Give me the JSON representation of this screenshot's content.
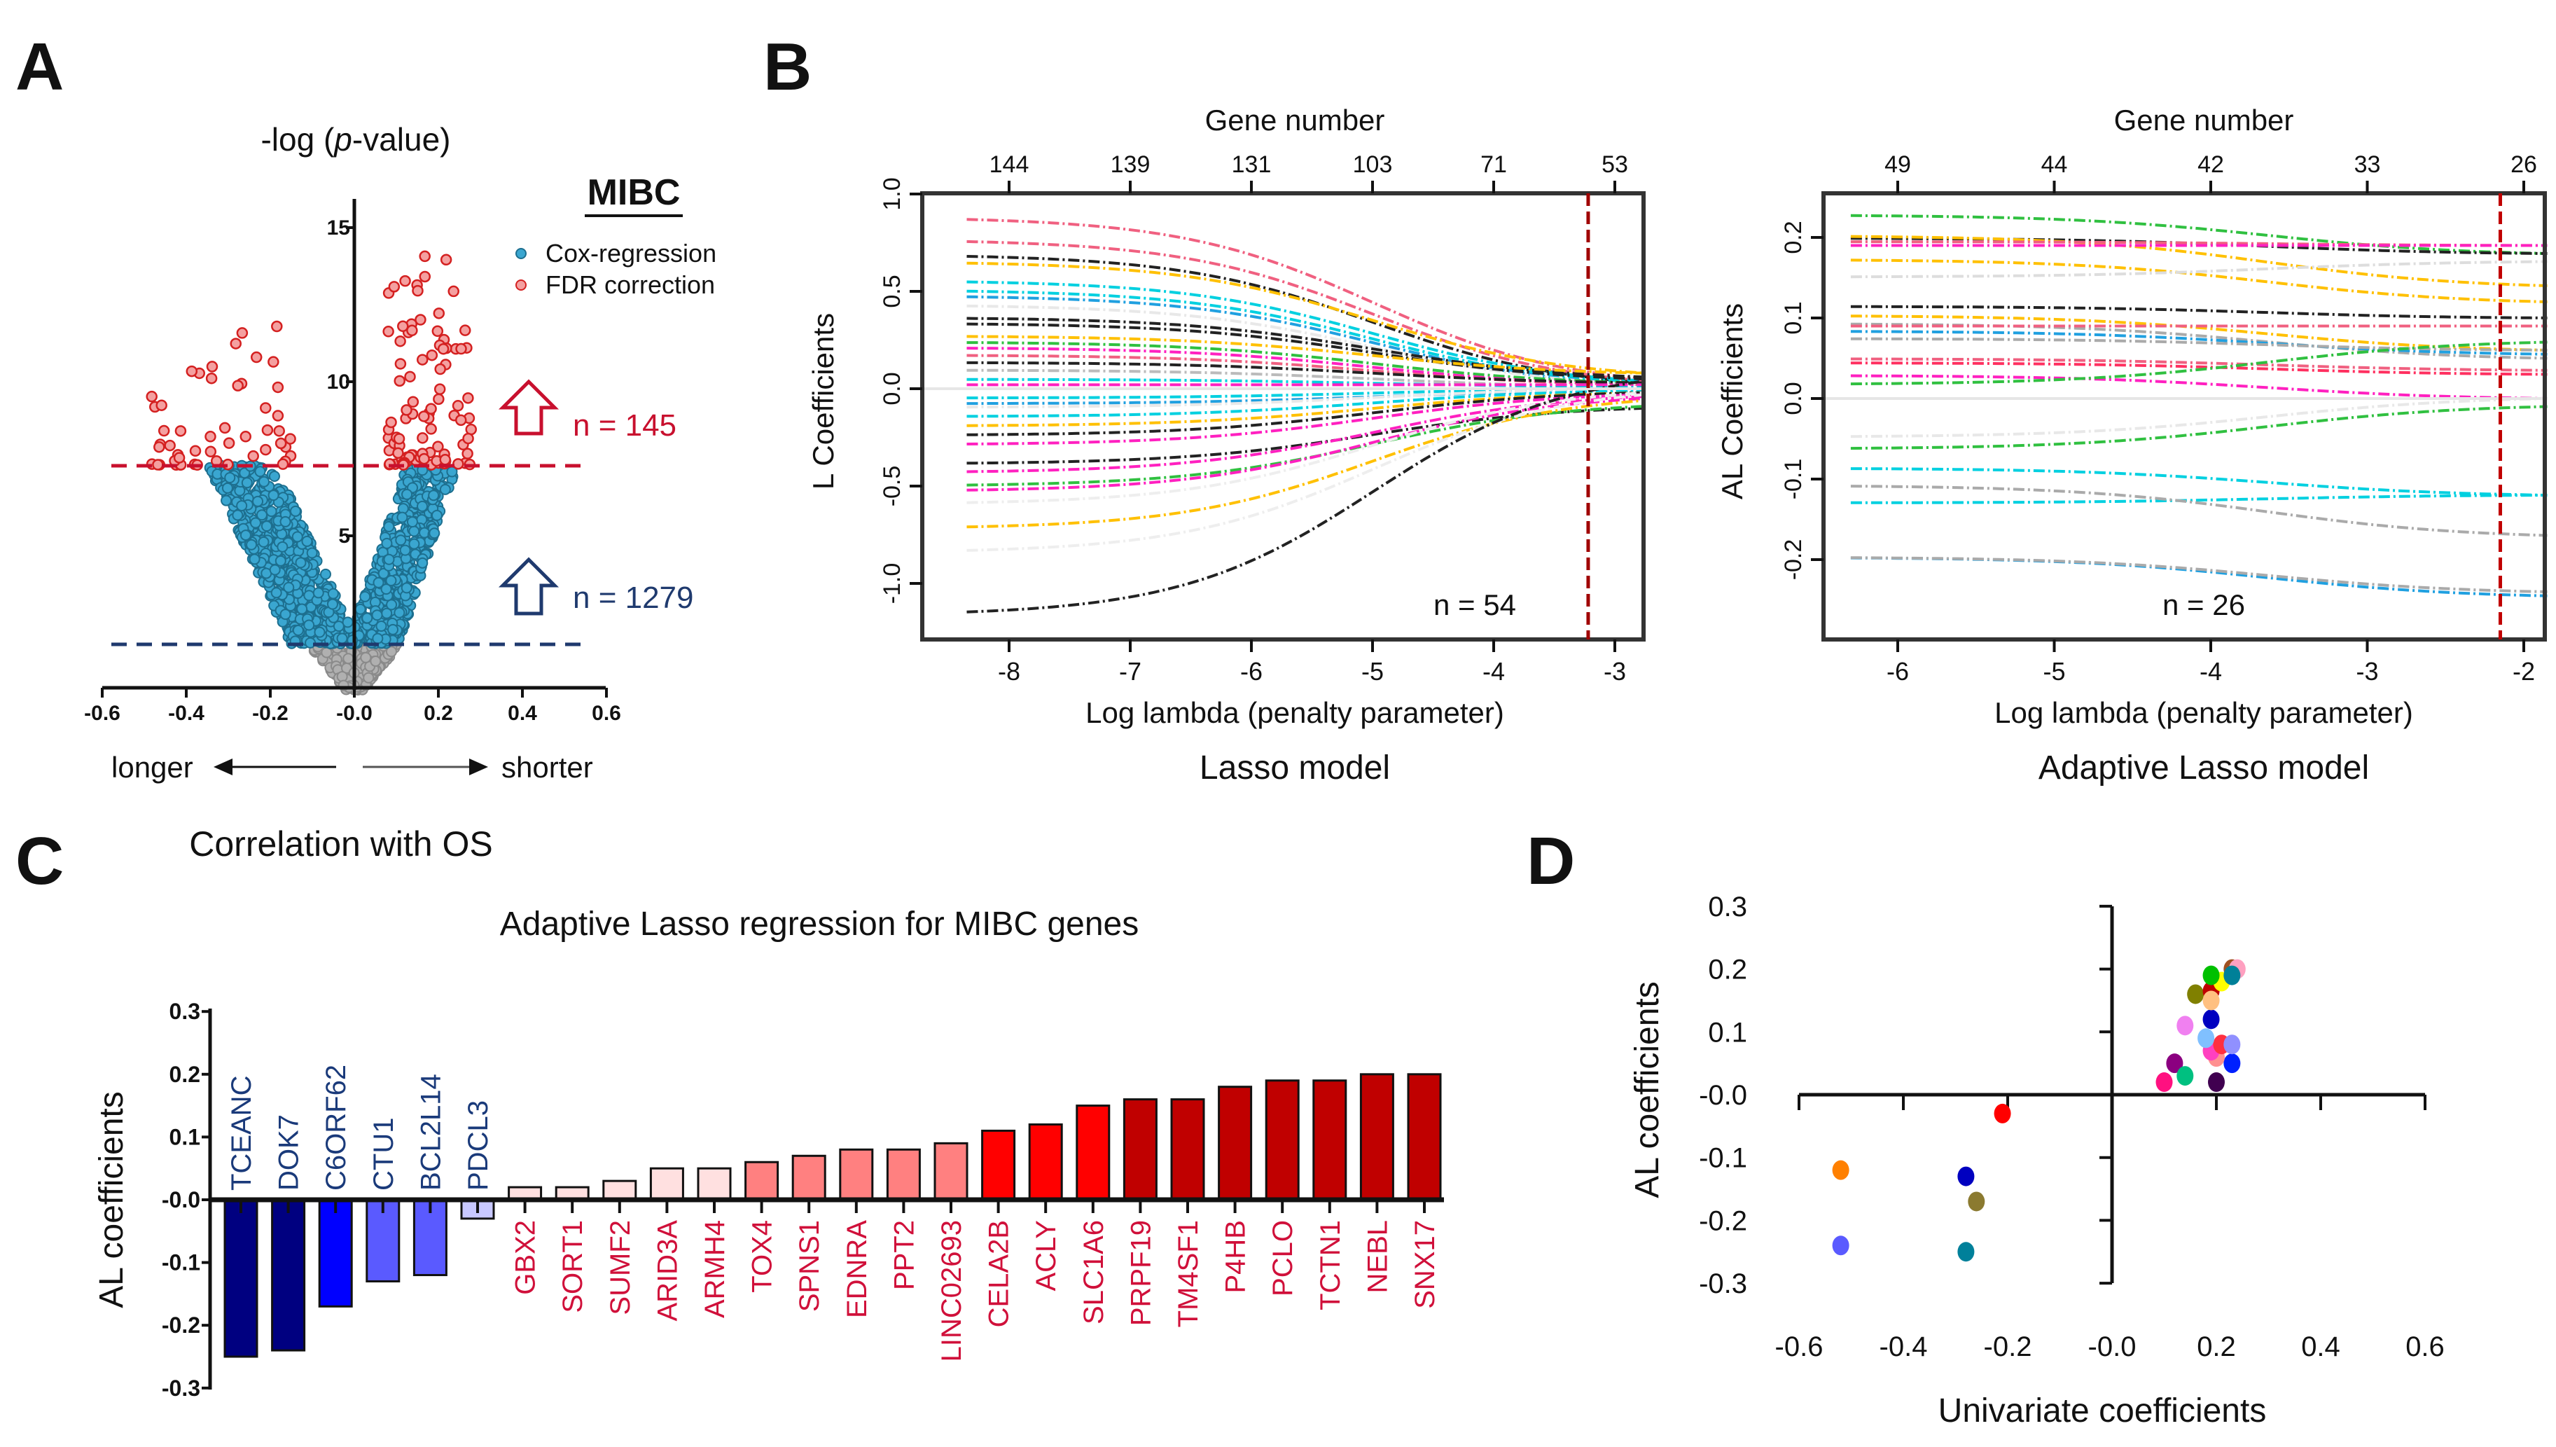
{
  "panels": {
    "A": "A",
    "B": "B",
    "C": "C",
    "D": "D"
  },
  "chart_data": [
    {
      "panel": "A",
      "type": "scatter",
      "ylabel_prefix": "-log (",
      "ylabel_italic": "p",
      "ylabel_suffix": "-value)",
      "xlabel": "Correlation with OS",
      "direction_left": "longer",
      "direction_right": "shorter",
      "group_label": "MIBC",
      "legend": [
        {
          "name": "Cox-regression",
          "color": "#3aa6d0"
        },
        {
          "name": "FDR correction",
          "color": "#e04848"
        }
      ],
      "xlim": [
        -0.6,
        0.6
      ],
      "ylim": [
        0,
        16
      ],
      "xticks": [
        "-0.6",
        "-0.4",
        "-0.2",
        "-0.0",
        "0.2",
        "0.4",
        "0.6"
      ],
      "xtick_values": [
        -0.6,
        -0.4,
        -0.2,
        0.0,
        0.2,
        0.4,
        0.6
      ],
      "yticks": [
        "5",
        "10",
        "15"
      ],
      "ytick_values": [
        5,
        10,
        15
      ],
      "fdr_threshold": 7.3,
      "cox_threshold": 1.5,
      "fdr_count_label": "n = 145",
      "cox_count_label": "n = 1279",
      "fdr_count": 145,
      "cox_count": 1279,
      "colors": {
        "fdr": "#c8102e",
        "cox": "#1f3a6e",
        "nonsig": "#8a8a8a"
      }
    },
    {
      "panel": "B-left",
      "type": "line",
      "top_axis_title": "Gene number",
      "top_ticks": [
        "144",
        "139",
        "131",
        "103",
        "71",
        "53"
      ],
      "top_tick_positions": [
        -8,
        -7,
        -6,
        -5,
        -4,
        -3
      ],
      "xlabel": "Log lambda (penalty parameter)",
      "ylabel": "L Coefficients",
      "subtitle": "Lasso model",
      "annotation": "n = 54",
      "xlim": [
        -8.35,
        -2.75
      ],
      "ylim": [
        -1.3,
        1.0
      ],
      "xticks": [
        "-8",
        "-7",
        "-6",
        "-5",
        "-4",
        "-3"
      ],
      "xtick_values": [
        -8,
        -7,
        -6,
        -5,
        -4,
        -3
      ],
      "yticks": [
        "1.0",
        "0.5",
        "0.0",
        "-0.5",
        "-1.0"
      ],
      "ytick_values": [
        1.0,
        0.5,
        0.0,
        -0.5,
        -1.0
      ],
      "selected_log_lambda": -3.22,
      "series": [
        {
          "start": 0.92,
          "end": 0.05,
          "color": "#f06080"
        },
        {
          "start": 0.8,
          "end": 0.04,
          "color": "#f06080"
        },
        {
          "start": 0.72,
          "end": 0.03,
          "color": "#222222"
        },
        {
          "start": 0.68,
          "end": 0.08,
          "color": "#ffc000"
        },
        {
          "start": 0.58,
          "end": 0.04,
          "color": "#00d0e0"
        },
        {
          "start": 0.53,
          "end": 0.03,
          "color": "#00d0e0"
        },
        {
          "start": 0.5,
          "end": 0.02,
          "color": "#20a0e0"
        },
        {
          "start": 0.45,
          "end": 0.02,
          "color": "#e8e8e8"
        },
        {
          "start": 0.38,
          "end": 0.06,
          "color": "#222222"
        },
        {
          "start": 0.35,
          "end": 0.05,
          "color": "#222222"
        },
        {
          "start": 0.28,
          "end": 0.08,
          "color": "#ffc000"
        },
        {
          "start": 0.25,
          "end": 0.03,
          "color": "#30c040"
        },
        {
          "start": 0.22,
          "end": 0.02,
          "color": "#ff20c0"
        },
        {
          "start": 0.18,
          "end": 0.02,
          "color": "#f06080"
        },
        {
          "start": 0.14,
          "end": 0.03,
          "color": "#222222"
        },
        {
          "start": 0.1,
          "end": 0.01,
          "color": "#bbbbbb"
        },
        {
          "start": 0.05,
          "end": 0.01,
          "color": "#00d0e0"
        },
        {
          "start": 0.02,
          "end": 0.02,
          "color": "#ff20c0"
        },
        {
          "start": -0.05,
          "end": 0.0,
          "color": "#00d0e0"
        },
        {
          "start": -0.08,
          "end": -0.01,
          "color": "#20a0e0"
        },
        {
          "start": -0.1,
          "end": 0.0,
          "color": "#e8e8e8"
        },
        {
          "start": -0.15,
          "end": -0.01,
          "color": "#00d0e0"
        },
        {
          "start": -0.2,
          "end": -0.02,
          "color": "#ffc000"
        },
        {
          "start": -0.25,
          "end": -0.02,
          "color": "#222222"
        },
        {
          "start": -0.3,
          "end": -0.03,
          "color": "#ff20c0"
        },
        {
          "start": -0.4,
          "end": -0.1,
          "color": "#222222"
        },
        {
          "start": -0.45,
          "end": -0.04,
          "color": "#ff20c0"
        },
        {
          "start": -0.52,
          "end": -0.09,
          "color": "#30c040"
        },
        {
          "start": -0.55,
          "end": -0.05,
          "color": "#ff20c0"
        },
        {
          "start": -0.62,
          "end": -0.02,
          "color": "#eeeeee"
        },
        {
          "start": -0.75,
          "end": -0.06,
          "color": "#ffc000"
        },
        {
          "start": -0.88,
          "end": -0.03,
          "color": "#eeeeee"
        },
        {
          "start": -1.22,
          "end": 0.04,
          "color": "#222222"
        }
      ],
      "colors": {
        "cutoff": "#a00000"
      }
    },
    {
      "panel": "B-right",
      "type": "line",
      "top_axis_title": "Gene number",
      "top_ticks": [
        "49",
        "44",
        "42",
        "33",
        "26"
      ],
      "top_tick_positions": [
        -6,
        -5,
        -4,
        -3,
        -2
      ],
      "xlabel": "Log lambda (penalty parameter)",
      "ylabel": "AL Coefficients",
      "subtitle": "Adaptive Lasso model",
      "annotation": "n = 26",
      "xlim": [
        -6.3,
        -1.85
      ],
      "ylim": [
        -0.26,
        0.25
      ],
      "xticks": [
        "-6",
        "-5",
        "-4",
        "-3",
        "-2"
      ],
      "xtick_values": [
        -6,
        -5,
        -4,
        -3,
        -2
      ],
      "yticks": [
        "0.2",
        "0.1",
        "0.0",
        "-0.1",
        "-0.2"
      ],
      "ytick_values": [
        0.2,
        0.1,
        0.0,
        -0.1,
        -0.2
      ],
      "selected_log_lambda": -2.15,
      "series": [
        {
          "start": 0.23,
          "end": 0.18,
          "color": "#30c040"
        },
        {
          "start": 0.2,
          "end": 0.18,
          "color": "#222222"
        },
        {
          "start": 0.205,
          "end": 0.14,
          "color": "#ffc000"
        },
        {
          "start": 0.195,
          "end": 0.19,
          "color": "#f06080"
        },
        {
          "start": 0.19,
          "end": 0.19,
          "color": "#ff20c0"
        },
        {
          "start": 0.175,
          "end": 0.12,
          "color": "#ffc000"
        },
        {
          "start": 0.15,
          "end": 0.17,
          "color": "#dddddd"
        },
        {
          "start": 0.115,
          "end": 0.1,
          "color": "#222222"
        },
        {
          "start": 0.105,
          "end": 0.06,
          "color": "#ffc000"
        },
        {
          "start": 0.095,
          "end": 0.05,
          "color": "#aaaaaa"
        },
        {
          "start": 0.09,
          "end": 0.09,
          "color": "#f06080"
        },
        {
          "start": 0.085,
          "end": 0.055,
          "color": "#20a0e0"
        },
        {
          "start": 0.075,
          "end": 0.06,
          "color": "#aaaaaa"
        },
        {
          "start": 0.05,
          "end": 0.035,
          "color": "#f06080"
        },
        {
          "start": 0.045,
          "end": 0.03,
          "color": "#ff3060"
        },
        {
          "start": 0.03,
          "end": 0.0,
          "color": "#ff20c0"
        },
        {
          "start": 0.015,
          "end": 0.07,
          "color": "#30c040"
        },
        {
          "start": -0.05,
          "end": 0.0,
          "color": "#e8e8e8"
        },
        {
          "start": -0.065,
          "end": -0.01,
          "color": "#30c040"
        },
        {
          "start": -0.085,
          "end": -0.12,
          "color": "#00d0e0"
        },
        {
          "start": -0.13,
          "end": -0.12,
          "color": "#00d0e0"
        },
        {
          "start": -0.105,
          "end": -0.17,
          "color": "#aaaaaa"
        },
        {
          "start": -0.195,
          "end": -0.245,
          "color": "#20a0e0"
        },
        {
          "start": -0.195,
          "end": -0.24,
          "color": "#aaaaaa"
        }
      ],
      "colors": {
        "cutoff": "#c00000"
      }
    },
    {
      "panel": "C",
      "type": "bar",
      "title": "Adaptive Lasso regression for MIBC genes",
      "ylabel": "AL coefficients",
      "ylim": [
        -0.3,
        0.3
      ],
      "yticks": [
        "0.3",
        "0.2",
        "0.1",
        "-0.0",
        "-0.1",
        "-0.2",
        "-0.3"
      ],
      "ytick_values": [
        0.3,
        0.2,
        0.1,
        0.0,
        -0.1,
        -0.2,
        -0.3
      ],
      "categories": [
        "TCEANC",
        "DOK7",
        "C6ORF62",
        "CTU1",
        "BCL2L14",
        "PDCL3",
        "GBX2",
        "SORT1",
        "SUMF2",
        "ARID3A",
        "ARMH4",
        "TOX4",
        "SPNS1",
        "EDNRA",
        "PPT2",
        "LINC02693",
        "CELA2B",
        "ACLY",
        "SLC1A6",
        "PRPF19",
        "TM4SF1",
        "P4HB",
        "PCLO",
        "TCTN1",
        "NEBL",
        "SNX17"
      ],
      "values": [
        -0.25,
        -0.24,
        -0.17,
        -0.13,
        -0.12,
        -0.03,
        0.02,
        0.02,
        0.03,
        0.05,
        0.05,
        0.06,
        0.07,
        0.08,
        0.08,
        0.09,
        0.11,
        0.12,
        0.15,
        0.16,
        0.16,
        0.18,
        0.19,
        0.19,
        0.2,
        0.2
      ],
      "bar_colors": [
        "#000080",
        "#000080",
        "#0000ff",
        "#5a5aff",
        "#5a5aff",
        "#c8c8ff",
        "#ffe0e0",
        "#ffe0e0",
        "#ffe0e0",
        "#ffe0e0",
        "#ffe0e0",
        "#ff8080",
        "#ff8080",
        "#ff8080",
        "#ff8080",
        "#ff8080",
        "#ff0000",
        "#ff0000",
        "#ff0000",
        "#c00000",
        "#c00000",
        "#c00000",
        "#c00000",
        "#c00000",
        "#c00000",
        "#c00000"
      ],
      "label_colors": {
        "negative": "#1a3a7a",
        "positive": "#d0103a"
      }
    },
    {
      "panel": "D",
      "type": "scatter",
      "xlabel": "Univariate coefficients",
      "ylabel": "AL coefficients",
      "xlim": [
        -0.6,
        0.6
      ],
      "ylim": [
        -0.3,
        0.3
      ],
      "xticks": [
        "-0.6",
        "-0.4",
        "-0.2",
        "-0.0",
        "0.2",
        "0.4",
        "0.6"
      ],
      "xtick_values": [
        -0.6,
        -0.4,
        -0.2,
        0.0,
        0.2,
        0.4,
        0.6
      ],
      "yticks": [
        "0.3",
        "0.2",
        "0.1",
        "-0.0",
        "-0.1",
        "-0.2",
        "-0.3"
      ],
      "ytick_values": [
        0.3,
        0.2,
        0.1,
        0.0,
        -0.1,
        -0.2,
        -0.3
      ],
      "points": [
        {
          "x": -0.52,
          "y": -0.12,
          "color": "#ff8000"
        },
        {
          "x": -0.52,
          "y": -0.24,
          "color": "#5a5aff"
        },
        {
          "x": -0.28,
          "y": -0.13,
          "color": "#0000c0"
        },
        {
          "x": -0.26,
          "y": -0.17,
          "color": "#8b7a30"
        },
        {
          "x": -0.28,
          "y": -0.25,
          "color": "#00809a"
        },
        {
          "x": -0.21,
          "y": -0.03,
          "color": "#ff0000"
        },
        {
          "x": 0.1,
          "y": 0.02,
          "color": "#ff1080"
        },
        {
          "x": 0.12,
          "y": 0.05,
          "color": "#8b0080"
        },
        {
          "x": 0.14,
          "y": 0.03,
          "color": "#00c080"
        },
        {
          "x": 0.2,
          "y": 0.02,
          "color": "#400050"
        },
        {
          "x": 0.23,
          "y": 0.05,
          "color": "#0020ff"
        },
        {
          "x": 0.2,
          "y": 0.06,
          "color": "#ff9090"
        },
        {
          "x": 0.19,
          "y": 0.07,
          "color": "#ff40c0"
        },
        {
          "x": 0.21,
          "y": 0.08,
          "color": "#ff3040"
        },
        {
          "x": 0.23,
          "y": 0.08,
          "color": "#9090ff"
        },
        {
          "x": 0.18,
          "y": 0.09,
          "color": "#80c0ff"
        },
        {
          "x": 0.14,
          "y": 0.11,
          "color": "#f080f0"
        },
        {
          "x": 0.19,
          "y": 0.12,
          "color": "#0000c0"
        },
        {
          "x": 0.16,
          "y": 0.16,
          "color": "#808000"
        },
        {
          "x": 0.19,
          "y": 0.165,
          "color": "#c00000"
        },
        {
          "x": 0.19,
          "y": 0.15,
          "color": "#ffc080"
        },
        {
          "x": 0.21,
          "y": 0.18,
          "color": "#ffff00"
        },
        {
          "x": 0.19,
          "y": 0.19,
          "color": "#00c000"
        },
        {
          "x": 0.23,
          "y": 0.2,
          "color": "#a05020"
        },
        {
          "x": 0.24,
          "y": 0.2,
          "color": "#ffa0c0"
        },
        {
          "x": 0.23,
          "y": 0.19,
          "color": "#008098"
        }
      ]
    }
  ]
}
